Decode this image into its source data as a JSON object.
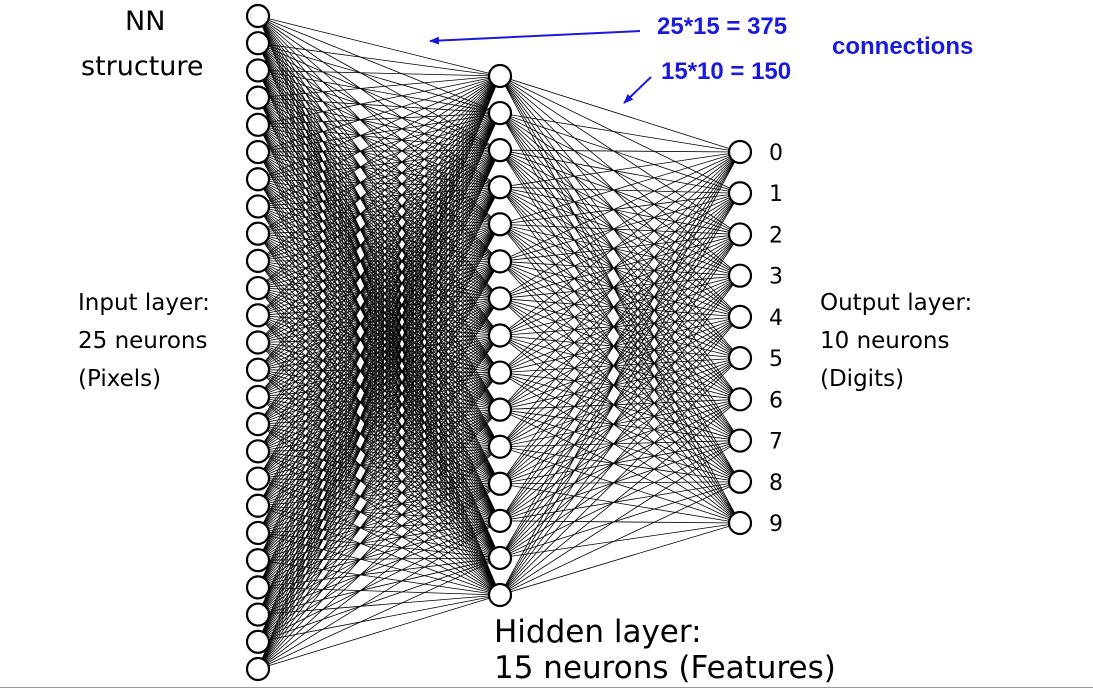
{
  "title": {
    "line1": "NN",
    "line2": "structure"
  },
  "input_layer": {
    "line1": "Input layer:",
    "line2": "25 neurons",
    "line3": "(Pixels)",
    "count": 25
  },
  "hidden_layer": {
    "line1": "Hidden layer:",
    "line2": "15 neurons (Features)",
    "count": 15
  },
  "output_layer": {
    "line1": "Output layer:",
    "line2": "10 neurons",
    "line3": "(Digits)",
    "count": 10,
    "digits": [
      "0",
      "1",
      "2",
      "3",
      "4",
      "5",
      "6",
      "7",
      "8",
      "9"
    ]
  },
  "annotations": {
    "input_hidden": "25*15 = 375",
    "hidden_output": "15*10 = 150",
    "connections": "connections"
  },
  "colors": {
    "annotation": "#1a1adc",
    "lines": "#000000",
    "node_fill": "#ffffff"
  }
}
